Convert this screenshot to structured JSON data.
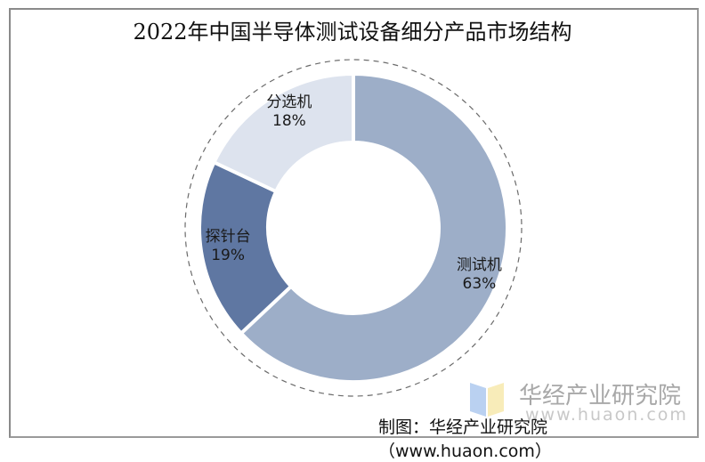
{
  "title": "2022年中国半导体测试设备细分产品市场结构",
  "chart_data": {
    "type": "pie",
    "variant": "donut",
    "title": "2022年中国半导体测试设备细分产品市场结构",
    "categories": [
      "测试机",
      "探针台",
      "分选机"
    ],
    "values": [
      63,
      19,
      18
    ],
    "unit": "%",
    "colors": [
      "#9DAEC8",
      "#5F77A2",
      "#DDE3EE"
    ],
    "labels": [
      {
        "name": "测试机",
        "pct": "63%"
      },
      {
        "name": "探针台",
        "pct": "19%"
      },
      {
        "name": "分选机",
        "pct": "18%"
      }
    ],
    "start_angle": "12 o'clock, clockwise",
    "legend": "none (data labels on segments)"
  },
  "watermark": {
    "text": "华经产业研究院",
    "url": "www.huaon.com"
  },
  "credit": "制图：华经产业研究院（www.huaon.com）"
}
